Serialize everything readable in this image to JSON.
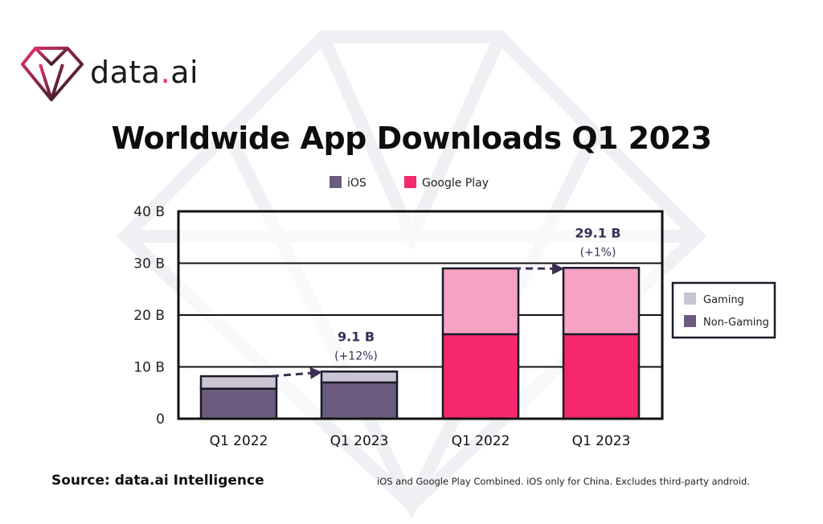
{
  "brand": {
    "name_prefix": "data",
    "name_dot": ".",
    "name_suffix": "ai",
    "accent": "#e8316f"
  },
  "chart_data": {
    "type": "bar",
    "stacked": true,
    "title": "Worldwide App Downloads Q1 2023",
    "categories": [
      "Q1 2022",
      "Q1 2023",
      "Q1 2022",
      "Q1 2023"
    ],
    "platforms": [
      "iOS",
      "iOS",
      "Google Play",
      "Google Play"
    ],
    "series": [
      {
        "name": "Non-Gaming",
        "values": [
          5.8,
          7.0,
          16.3,
          16.3
        ]
      },
      {
        "name": "Gaming",
        "values": [
          2.4,
          2.1,
          12.7,
          12.8
        ]
      }
    ],
    "platform_legend": [
      {
        "label": "iOS",
        "color": "#6b5b7e"
      },
      {
        "label": "Google Play",
        "color": "#f5286e"
      }
    ],
    "type_legend": [
      {
        "label": "Gaming",
        "color": "#cbc4d3"
      },
      {
        "label": "Non-Gaming",
        "color": "#6b5b7e"
      }
    ],
    "colors": {
      "ios_non_gaming": "#6b5b7e",
      "ios_gaming": "#cbc4d3",
      "gp_non_gaming": "#f5286e",
      "gp_gaming": "#f7a1c3",
      "annotation": "#3b2f55"
    },
    "ylim": [
      0,
      40
    ],
    "yticks": [
      0,
      10,
      20,
      30,
      40
    ],
    "ytick_labels": [
      "0",
      "10 B",
      "20 B",
      "30 B",
      "40 B"
    ],
    "grid": true,
    "annotations": [
      {
        "from_index": 0,
        "to_index": 1,
        "value_label": "9.1 B",
        "change_label": "(+12%)"
      },
      {
        "from_index": 2,
        "to_index": 3,
        "value_label": "29.1 B",
        "change_label": "(+1%)"
      }
    ]
  },
  "footer": {
    "source": "Source: data.ai Intelligence",
    "note": "iOS and Google Play Combined. iOS only for China. Excludes third-party android."
  }
}
